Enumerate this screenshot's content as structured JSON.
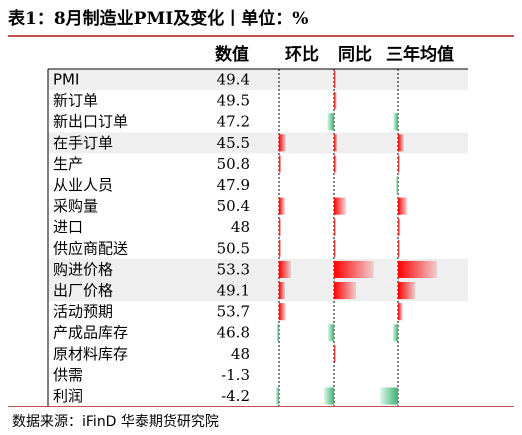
{
  "title": "表1：8月制造业PMI及变化丨单位：%",
  "source": "数据来源：iFinD   华泰期货研究院",
  "colors": {
    "positive": "#ff0000",
    "negative": "#3cb371",
    "title_rule": "#c0504d",
    "highlight": "#efefef"
  },
  "chart_data": {
    "type": "table",
    "columns": [
      "数值",
      "环比",
      "同比",
      "三年均值"
    ],
    "rows": [
      {
        "label": "PMI",
        "value": "49.4",
        "mom": 0.0,
        "yoy": 0.3,
        "avg3y": 0.0
      },
      {
        "label": "新订单",
        "value": "49.5",
        "mom": 0.0,
        "yoy": 0.5,
        "avg3y": 0.0
      },
      {
        "label": "新出口订单",
        "value": "47.2",
        "mom": 0.0,
        "yoy": -1.2,
        "avg3y": -0.8
      },
      {
        "label": "在手订单",
        "value": "45.5",
        "mom": 0.9,
        "yoy": 0.6,
        "avg3y": 1.0
      },
      {
        "label": "生产",
        "value": "50.8",
        "mom": 0.3,
        "yoy": 0.5,
        "avg3y": 0.3
      },
      {
        "label": "从业人员",
        "value": "47.9",
        "mom": 0.0,
        "yoy": 0.0,
        "avg3y": -0.3
      },
      {
        "label": "采购量",
        "value": "50.4",
        "mom": 0.8,
        "yoy": 2.2,
        "avg3y": 1.6
      },
      {
        "label": "进口",
        "value": "48",
        "mom": 0.2,
        "yoy": 0.3,
        "avg3y": 0.4
      },
      {
        "label": "供应商配送",
        "value": "50.5",
        "mom": 0.2,
        "yoy": 0.3,
        "avg3y": 0.3
      },
      {
        "label": "购进价格",
        "value": "53.3",
        "mom": 1.6,
        "yoy": 7.2,
        "avg3y": 6.7
      },
      {
        "label": "出厂价格",
        "value": "49.1",
        "mom": 0.8,
        "yoy": 4.0,
        "avg3y": 3.0
      },
      {
        "label": "活动预期",
        "value": "53.7",
        "mom": 0.9,
        "yoy": 0.0,
        "avg3y": 0.8
      },
      {
        "label": "产成品库存",
        "value": "46.8",
        "mom": -0.3,
        "yoy": -1.1,
        "avg3y": -0.9
      },
      {
        "label": "原材料库存",
        "value": "48",
        "mom": 0.0,
        "yoy": 0.3,
        "avg3y": 0.0
      },
      {
        "label": "供需",
        "value": "-1.3",
        "mom": 0.0,
        "yoy": 0.0,
        "avg3y": 0.0
      },
      {
        "label": "利润",
        "value": "-4.2",
        "mom": -0.4,
        "yoy": -1.8,
        "avg3y": -3.1
      }
    ],
    "highlight_rows": [
      0,
      3,
      9,
      10
    ]
  }
}
